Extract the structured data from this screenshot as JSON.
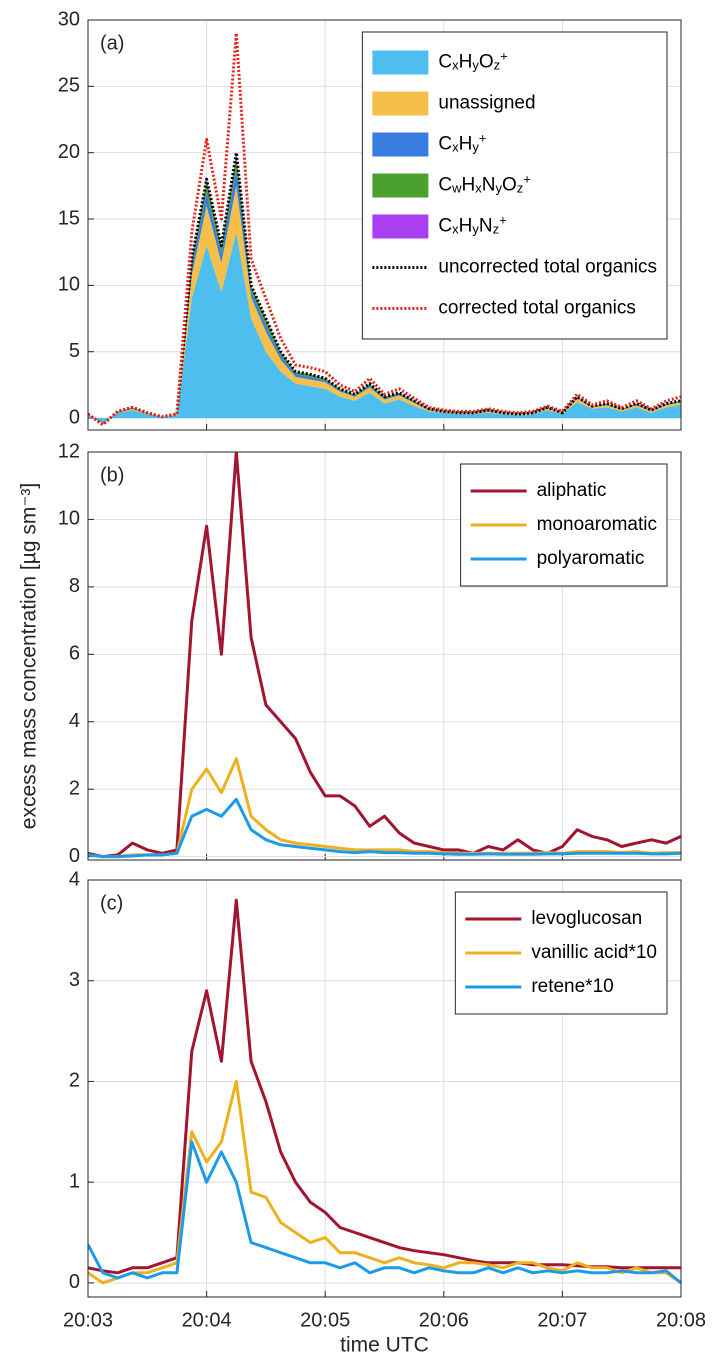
{
  "chart_data": [
    {
      "type": "area",
      "label": "(a)",
      "legend": "upper right",
      "grid": true,
      "show_xtick_labels": false,
      "x": [
        3,
        3.125,
        3.25,
        3.375,
        3.5,
        3.625,
        3.75,
        3.875,
        4,
        4.125,
        4.25,
        4.375,
        4.5,
        4.625,
        4.75,
        4.875,
        5,
        5.125,
        5.25,
        5.375,
        5.5,
        5.625,
        5.75,
        5.875,
        6,
        6.125,
        6.25,
        6.375,
        6.5,
        6.625,
        6.75,
        6.875,
        7,
        7.125,
        7.25,
        7.375,
        7.5,
        7.625,
        7.75,
        7.875,
        8
      ],
      "xlim": [
        3,
        8
      ],
      "xticks": [
        3,
        4,
        5,
        6,
        7,
        8
      ],
      "ylim": [
        -0.9,
        30
      ],
      "yticks": [
        0,
        5,
        10,
        15,
        20,
        25,
        30
      ],
      "series": [
        {
          "name": "CxHyOz+",
          "kind": "area",
          "color": "#4dbeee",
          "values": [
            0.2,
            -0.4,
            0.4,
            0.6,
            0.3,
            0.1,
            0.2,
            9,
            13,
            9.5,
            14,
            7.5,
            5,
            3.5,
            2.6,
            2.4,
            2.2,
            1.6,
            1.3,
            1.9,
            1.1,
            1.4,
            0.9,
            0.5,
            0.4,
            0.3,
            0.3,
            0.4,
            0.3,
            0.2,
            0.3,
            0.6,
            0.3,
            1.2,
            0.7,
            0.8,
            0.5,
            0.8,
            0.4,
            0.8,
            1.0
          ]
        },
        {
          "name": "unassigned",
          "kind": "area",
          "color": "#f5c04a",
          "values": [
            0.05,
            -0.05,
            0.05,
            0.1,
            0.05,
            0,
            0.05,
            1.8,
            3,
            2.2,
            3.5,
            1.6,
            1.5,
            0.9,
            0.5,
            0.5,
            0.5,
            0.4,
            0.3,
            0.4,
            0.3,
            0.3,
            0.25,
            0.1,
            0.07,
            0.06,
            0.06,
            0.1,
            0.06,
            0.05,
            0.06,
            0.12,
            0.06,
            0.25,
            0.13,
            0.18,
            0.12,
            0.18,
            0.12,
            0.18,
            0.2
          ]
        },
        {
          "name": "CxHy+",
          "kind": "area",
          "color": "#3a7de0",
          "values": [
            0.03,
            0,
            0.03,
            0.05,
            0.03,
            0,
            0.03,
            0.6,
            1,
            0.7,
            1.3,
            0.5,
            0.5,
            0.3,
            0.2,
            0.2,
            0.15,
            0.1,
            0.1,
            0.15,
            0.1,
            0.1,
            0.08,
            0.05,
            0.02,
            0.02,
            0.02,
            0.05,
            0.02,
            0.02,
            0.02,
            0.04,
            0.02,
            0.08,
            0.04,
            0.06,
            0.04,
            0.06,
            0.04,
            0.06,
            0.05
          ]
        },
        {
          "name": "CwHxNyOz+",
          "kind": "area",
          "color": "#4aa02c",
          "values": [
            0.02,
            0,
            0.02,
            0.04,
            0.02,
            0,
            0.02,
            0.5,
            0.8,
            0.5,
            1,
            0.35,
            0.45,
            0.25,
            0.18,
            0.18,
            0.13,
            0.09,
            0.09,
            0.13,
            0.09,
            0.09,
            0.06,
            0.04,
            0.02,
            0.02,
            0.02,
            0.04,
            0.02,
            0.02,
            0.02,
            0.04,
            0.02,
            0.06,
            0.03,
            0.05,
            0.03,
            0.05,
            0.03,
            0.05,
            0.04
          ]
        },
        {
          "name": "CxHyNz+",
          "kind": "area",
          "color": "#a93ff0",
          "values": [
            0,
            0,
            0,
            0.01,
            0,
            0,
            0,
            0.1,
            0.2,
            0.1,
            0.2,
            0.05,
            0.05,
            0.05,
            0.02,
            0.02,
            0.02,
            0.01,
            0.01,
            0.02,
            0.01,
            0.01,
            0.01,
            0.01,
            0,
            0,
            0,
            0.01,
            0,
            0,
            0,
            0.01,
            0,
            0.01,
            0,
            0.01,
            0,
            0.01,
            0,
            0.01,
            0.01
          ]
        },
        {
          "name": "uncorrected total organics",
          "kind": "line",
          "dash": "dotted",
          "color": "#000000",
          "values": [
            0.3,
            -0.5,
            0.5,
            0.8,
            0.4,
            0.1,
            0.3,
            12,
            18,
            13,
            20,
            10,
            7.5,
            5,
            3.5,
            3.3,
            3,
            2.2,
            1.8,
            2.6,
            1.6,
            1.9,
            1.3,
            0.7,
            0.5,
            0.4,
            0.4,
            0.6,
            0.4,
            0.3,
            0.4,
            0.8,
            0.4,
            1.6,
            0.9,
            1.1,
            0.7,
            1.1,
            0.6,
            1.1,
            1.3
          ]
        },
        {
          "name": "corrected total organics",
          "kind": "line",
          "dash": "dotted",
          "color": "#e8201a",
          "values": [
            0.3,
            -0.5,
            0.5,
            0.8,
            0.4,
            0.1,
            0.3,
            14,
            21,
            15,
            29,
            12,
            9,
            6,
            4,
            3.8,
            3.5,
            2.5,
            2,
            3,
            1.8,
            2.2,
            1.5,
            0.8,
            0.6,
            0.5,
            0.5,
            0.7,
            0.5,
            0.4,
            0.5,
            0.9,
            0.5,
            1.8,
            1,
            1.3,
            0.8,
            1.3,
            0.7,
            1.3,
            1.6
          ]
        }
      ]
    },
    {
      "type": "line",
      "label": "(b)",
      "legend": "upper right",
      "grid": true,
      "show_xtick_labels": false,
      "ylabel": "excess mass concentration [µg sm⁻³]",
      "x": [
        3,
        3.125,
        3.25,
        3.375,
        3.5,
        3.625,
        3.75,
        3.875,
        4,
        4.125,
        4.25,
        4.375,
        4.5,
        4.625,
        4.75,
        4.875,
        5,
        5.125,
        5.25,
        5.375,
        5.5,
        5.625,
        5.75,
        5.875,
        6,
        6.125,
        6.25,
        6.375,
        6.5,
        6.625,
        6.75,
        6.875,
        7,
        7.125,
        7.25,
        7.375,
        7.5,
        7.625,
        7.75,
        7.875,
        8
      ],
      "xlim": [
        3,
        8
      ],
      "xticks": [
        3,
        4,
        5,
        6,
        7,
        8
      ],
      "ylim": [
        -0.1,
        12
      ],
      "yticks": [
        0,
        2,
        4,
        6,
        8,
        10,
        12
      ],
      "series": [
        {
          "name": "aliphatic",
          "color": "#a2142f",
          "values": [
            0.1,
            0,
            0.05,
            0.4,
            0.2,
            0.1,
            0.2,
            7,
            9.8,
            6,
            12,
            6.5,
            4.5,
            4,
            3.5,
            2.5,
            1.8,
            1.8,
            1.5,
            0.9,
            1.2,
            0.7,
            0.4,
            0.3,
            0.2,
            0.2,
            0.1,
            0.3,
            0.2,
            0.5,
            0.2,
            0.1,
            0.3,
            0.8,
            0.6,
            0.5,
            0.3,
            0.4,
            0.5,
            0.4,
            0.6
          ]
        },
        {
          "name": "monoaromatic",
          "color": "#edb120",
          "values": [
            0.05,
            0,
            0,
            0.05,
            0.05,
            0.05,
            0.1,
            2,
            2.6,
            1.9,
            2.9,
            1.2,
            0.8,
            0.5,
            0.4,
            0.35,
            0.3,
            0.25,
            0.2,
            0.2,
            0.2,
            0.2,
            0.15,
            0.15,
            0.12,
            0.1,
            0.1,
            0.1,
            0.1,
            0.1,
            0.1,
            0.12,
            0.1,
            0.15,
            0.15,
            0.15,
            0.12,
            0.15,
            0.1,
            0.12,
            0.12
          ]
        },
        {
          "name": "polyaromatic",
          "color": "#1e9be8",
          "values": [
            0.05,
            0,
            0,
            0.02,
            0.05,
            0.05,
            0.1,
            1.2,
            1.4,
            1.2,
            1.7,
            0.8,
            0.5,
            0.35,
            0.3,
            0.25,
            0.2,
            0.15,
            0.12,
            0.15,
            0.12,
            0.12,
            0.1,
            0.1,
            0.08,
            0.07,
            0.07,
            0.08,
            0.07,
            0.07,
            0.07,
            0.08,
            0.08,
            0.1,
            0.1,
            0.1,
            0.1,
            0.1,
            0.08,
            0.08,
            0.1
          ]
        }
      ]
    },
    {
      "type": "line",
      "label": "(c)",
      "legend": "upper right",
      "grid": true,
      "show_xtick_labels": true,
      "xlabel": "time UTC",
      "x": [
        3,
        3.125,
        3.25,
        3.375,
        3.5,
        3.625,
        3.75,
        3.875,
        4,
        4.125,
        4.25,
        4.375,
        4.5,
        4.625,
        4.75,
        4.875,
        5,
        5.125,
        5.25,
        5.375,
        5.5,
        5.625,
        5.75,
        5.875,
        6,
        6.125,
        6.25,
        6.375,
        6.5,
        6.625,
        6.75,
        6.875,
        7,
        7.125,
        7.25,
        7.375,
        7.5,
        7.625,
        7.75,
        7.875,
        8
      ],
      "xlim": [
        3,
        8
      ],
      "xticks": [
        {
          "value": 3,
          "label": "20:03"
        },
        {
          "value": 4,
          "label": "20:04"
        },
        {
          "value": 5,
          "label": "20:05"
        },
        {
          "value": 6,
          "label": "20:06"
        },
        {
          "value": 7,
          "label": "20:07"
        },
        {
          "value": 8,
          "label": "20:08"
        }
      ],
      "ylim": [
        -0.14,
        4
      ],
      "yticks": [
        0,
        1,
        2,
        3,
        4
      ],
      "series": [
        {
          "name": "levoglucosan",
          "color": "#a2142f",
          "values": [
            0.15,
            0.12,
            0.1,
            0.15,
            0.15,
            0.2,
            0.25,
            2.3,
            2.9,
            2.2,
            3.8,
            2.2,
            1.8,
            1.3,
            1,
            0.8,
            0.7,
            0.55,
            0.5,
            0.45,
            0.4,
            0.35,
            0.32,
            0.3,
            0.28,
            0.25,
            0.22,
            0.2,
            0.2,
            0.2,
            0.18,
            0.18,
            0.18,
            0.17,
            0.16,
            0.16,
            0.15,
            0.15,
            0.15,
            0.15,
            0.15
          ]
        },
        {
          "name": "vanillic acid*10",
          "color": "#edb120",
          "values": [
            0.1,
            0,
            0.05,
            0.1,
            0.1,
            0.15,
            0.2,
            1.5,
            1.2,
            1.4,
            2,
            0.9,
            0.85,
            0.6,
            0.5,
            0.4,
            0.45,
            0.3,
            0.3,
            0.25,
            0.2,
            0.25,
            0.2,
            0.18,
            0.15,
            0.2,
            0.2,
            0.18,
            0.15,
            0.2,
            0.2,
            0.15,
            0.12,
            0.2,
            0.15,
            0.15,
            0.1,
            0.15,
            0.1,
            0.1,
            0
          ]
        },
        {
          "name": "retene*10",
          "color": "#1e9be8",
          "values": [
            0.38,
            0.1,
            0.05,
            0.1,
            0.05,
            0.1,
            0.1,
            1.4,
            1,
            1.3,
            1,
            0.4,
            0.35,
            0.3,
            0.25,
            0.2,
            0.2,
            0.15,
            0.2,
            0.1,
            0.15,
            0.15,
            0.1,
            0.15,
            0.12,
            0.1,
            0.1,
            0.15,
            0.1,
            0.15,
            0.1,
            0.12,
            0.1,
            0.12,
            0.1,
            0.1,
            0.12,
            0.1,
            0.1,
            0.12,
            0
          ]
        }
      ]
    }
  ]
}
